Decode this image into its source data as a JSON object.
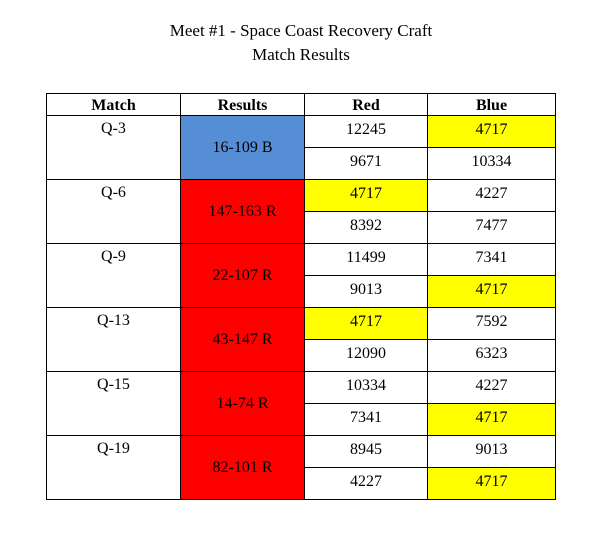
{
  "title": "Meet #1 - Space Coast Recovery Craft",
  "subtitle": "Match Results",
  "colors": {
    "blue_win": "#558ed5",
    "red_win": "#ff0000",
    "highlight": "#ffff00"
  },
  "table": {
    "headers": [
      "Match",
      "Results",
      "Red",
      "Blue"
    ],
    "matches": [
      {
        "match": "Q-3",
        "result": "16-109 B",
        "winner": "blue",
        "red": [
          "12245",
          "9671"
        ],
        "blue": [
          "4717",
          "10334"
        ],
        "red_highlight": [
          false,
          false
        ],
        "blue_highlight": [
          true,
          false
        ]
      },
      {
        "match": "Q-6",
        "result": "147-163 R",
        "winner": "red",
        "red": [
          "4717",
          "8392"
        ],
        "blue": [
          "4227",
          "7477"
        ],
        "red_highlight": [
          true,
          false
        ],
        "blue_highlight": [
          false,
          false
        ]
      },
      {
        "match": "Q-9",
        "result": "22-107 R",
        "winner": "red",
        "red": [
          "11499",
          "9013"
        ],
        "blue": [
          "7341",
          "4717"
        ],
        "red_highlight": [
          false,
          false
        ],
        "blue_highlight": [
          false,
          true
        ]
      },
      {
        "match": "Q-13",
        "result": "43-147 R",
        "winner": "red",
        "red": [
          "4717",
          "12090"
        ],
        "blue": [
          "7592",
          "6323"
        ],
        "red_highlight": [
          true,
          false
        ],
        "blue_highlight": [
          false,
          false
        ]
      },
      {
        "match": "Q-15",
        "result": "14-74 R",
        "winner": "red",
        "red": [
          "10334",
          "7341"
        ],
        "blue": [
          "4227",
          "4717"
        ],
        "red_highlight": [
          false,
          false
        ],
        "blue_highlight": [
          false,
          true
        ]
      },
      {
        "match": "Q-19",
        "result": "82-101 R",
        "winner": "red",
        "red": [
          "8945",
          "4227"
        ],
        "blue": [
          "9013",
          "4717"
        ],
        "red_highlight": [
          false,
          false
        ],
        "blue_highlight": [
          false,
          true
        ]
      }
    ]
  }
}
